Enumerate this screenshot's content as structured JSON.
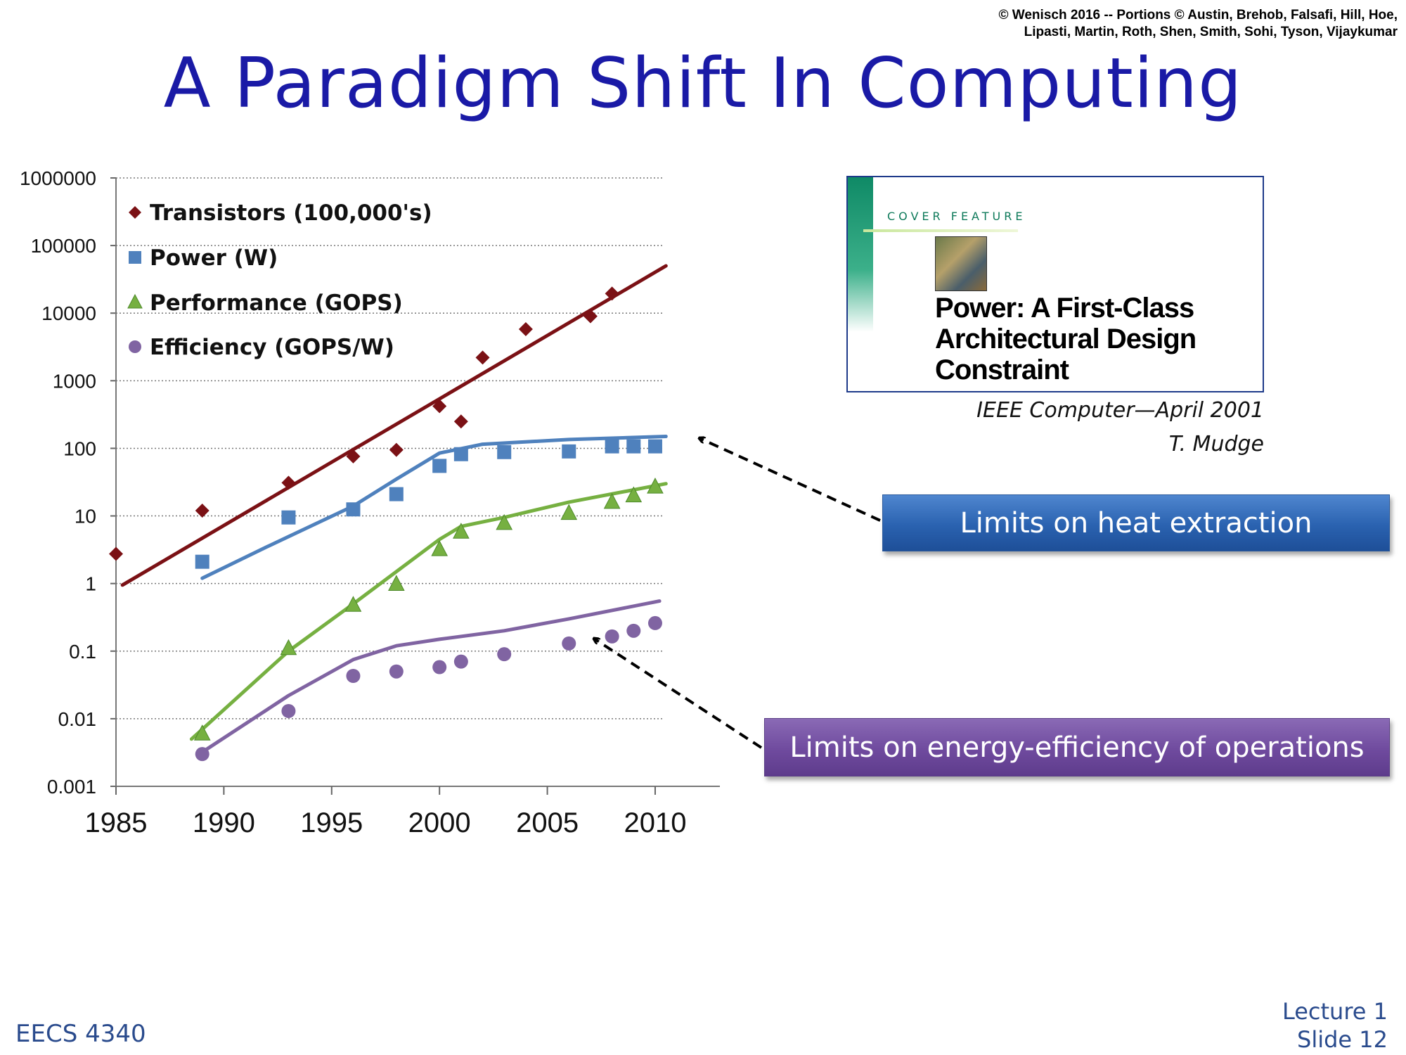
{
  "header": {
    "copyright_line1": "© Wenisch 2016 -- Portions © Austin, Brehob, Falsafi, Hill, Hoe,",
    "copyright_line2": "Lipasti, Martin, Roth, Shen, Smith, Sohi, Tyson, Vijaykumar"
  },
  "slide": {
    "title": "A Paradigm Shift In Computing"
  },
  "paper": {
    "kicker": "COVER FEATURE",
    "headline_line1": "Power: A First-Class",
    "headline_line2": "Architectural Design",
    "headline_line3": "Constraint",
    "citation_line1": "IEEE Computer—April 2001",
    "citation_line2": "T. Mudge"
  },
  "callouts": {
    "heat": "Limits on heat extraction",
    "energy": "Limits on energy-efficiency of operations"
  },
  "footer": {
    "course": "EECS 4340",
    "lecture": "Lecture 1",
    "slide": "Slide 12"
  },
  "colors": {
    "transistors": "#7b1115",
    "power": "#4f81bd",
    "performance": "#76b041",
    "efficiency": "#8064a2",
    "title": "#1a1aa6"
  },
  "chart_data": {
    "type": "scatter",
    "yscale": "log",
    "xlim": [
      1985,
      2013
    ],
    "ylim": [
      0.001,
      1000000
    ],
    "xticks": [
      1985,
      1990,
      1995,
      2000,
      2005,
      2010
    ],
    "yticks": [
      "0.001",
      "0.01",
      "0.1",
      "1",
      "10",
      "100",
      "1000",
      "10000",
      "100000",
      "1000000"
    ],
    "grid": "horizontal dotted",
    "legend_position": "top-left",
    "series": [
      {
        "name": "Transistors (100,000's)",
        "marker": "diamond",
        "points": [
          [
            1985,
            2.75
          ],
          [
            1989,
            12
          ],
          [
            1993,
            31
          ],
          [
            1996,
            76
          ],
          [
            1998,
            95
          ],
          [
            2000,
            420
          ],
          [
            2001,
            250
          ],
          [
            2002,
            2200
          ],
          [
            2004,
            5800
          ],
          [
            2007,
            9000
          ],
          [
            2008,
            19500
          ]
        ],
        "trend": [
          [
            1985.3,
            0.95
          ],
          [
            2010.5,
            50000
          ]
        ]
      },
      {
        "name": "Power (W)",
        "marker": "square",
        "points": [
          [
            1989,
            2.1
          ],
          [
            1993,
            9.5
          ],
          [
            1996,
            12.5
          ],
          [
            1998,
            21
          ],
          [
            2000,
            55
          ],
          [
            2001,
            82
          ],
          [
            2003,
            88
          ],
          [
            2006,
            90
          ],
          [
            2008,
            107
          ],
          [
            2009,
            107
          ],
          [
            2010,
            107
          ]
        ],
        "trend": [
          [
            1989,
            1.2
          ],
          [
            1992,
            3.5
          ],
          [
            1996,
            14
          ],
          [
            1998,
            35
          ],
          [
            2000,
            85
          ],
          [
            2002,
            115
          ],
          [
            2006,
            135
          ],
          [
            2010.5,
            150
          ]
        ]
      },
      {
        "name": "Performance (GOPS)",
        "marker": "triangle",
        "points": [
          [
            1989,
            0.006
          ],
          [
            1993,
            0.11
          ],
          [
            1996,
            0.48
          ],
          [
            1998,
            0.98
          ],
          [
            2000,
            3.2
          ],
          [
            2001,
            5.8
          ],
          [
            2003,
            7.8
          ],
          [
            2006,
            11
          ],
          [
            2008,
            16
          ],
          [
            2009,
            20
          ],
          [
            2010,
            27
          ]
        ],
        "trend": [
          [
            1988.5,
            0.005
          ],
          [
            1993,
            0.1
          ],
          [
            1996,
            0.5
          ],
          [
            1998,
            1.5
          ],
          [
            2000,
            4.5
          ],
          [
            2001,
            7
          ],
          [
            2003,
            9.5
          ],
          [
            2006,
            16
          ],
          [
            2010.5,
            30
          ]
        ]
      },
      {
        "name": "Efficiency (GOPS/W)",
        "marker": "circle",
        "points": [
          [
            1989,
            0.003
          ],
          [
            1993,
            0.013
          ],
          [
            1996,
            0.043
          ],
          [
            1998,
            0.05
          ],
          [
            2000,
            0.058
          ],
          [
            2001,
            0.07
          ],
          [
            2003,
            0.09
          ],
          [
            2006,
            0.13
          ],
          [
            2008,
            0.165
          ],
          [
            2009,
            0.2
          ],
          [
            2010,
            0.26
          ]
        ],
        "trend": [
          [
            1989,
            0.0032
          ],
          [
            1993,
            0.022
          ],
          [
            1996,
            0.075
          ],
          [
            1998,
            0.12
          ],
          [
            2000,
            0.15
          ],
          [
            2003,
            0.2
          ],
          [
            2006,
            0.3
          ],
          [
            2010.2,
            0.55
          ]
        ]
      }
    ]
  }
}
